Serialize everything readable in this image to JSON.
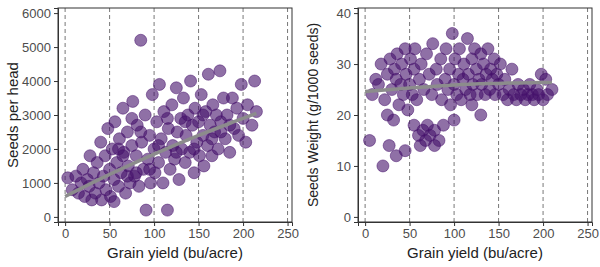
{
  "chart_data": [
    {
      "type": "scatter",
      "xlabel": "Grain yield (bu/acre)",
      "ylabel": "Seeds per head",
      "xlim": [
        -8,
        255
      ],
      "ylim": [
        -150,
        6150
      ],
      "xticks": [
        0,
        50,
        100,
        150,
        200,
        250
      ],
      "yticks": [
        0,
        1000,
        2000,
        3000,
        4000,
        5000,
        6000
      ],
      "grid": "x",
      "series": [
        {
          "type": "scatter",
          "marker": "circle",
          "color": "#45106b",
          "x": [
            3,
            8,
            12,
            15,
            18,
            20,
            22,
            25,
            27,
            28,
            30,
            32,
            34,
            36,
            38,
            40,
            41,
            43,
            45,
            46,
            48,
            50,
            51,
            53,
            55,
            56,
            58,
            60,
            61,
            63,
            65,
            66,
            68,
            70,
            71,
            73,
            75,
            76,
            78,
            80,
            81,
            83,
            85,
            86,
            88,
            90,
            91,
            93,
            95,
            96,
            98,
            100,
            101,
            103,
            105,
            106,
            108,
            110,
            111,
            113,
            115,
            116,
            118,
            120,
            121,
            123,
            125,
            126,
            128,
            130,
            131,
            133,
            135,
            136,
            138,
            140,
            141,
            143,
            145,
            146,
            148,
            150,
            151,
            153,
            155,
            156,
            158,
            160,
            161,
            163,
            165,
            166,
            168,
            170,
            172,
            174,
            175,
            178,
            180,
            182,
            185,
            188,
            190,
            193,
            195,
            198,
            200,
            203,
            205,
            210,
            213,
            215,
            55,
            60,
            65,
            70,
            75,
            80,
            85,
            95,
            105,
            115,
            125,
            135,
            145,
            155,
            165,
            175,
            185
          ],
          "values": [
            1150,
            800,
            1200,
            700,
            1000,
            1400,
            600,
            1100,
            900,
            1800,
            500,
            1300,
            700,
            1600,
            1000,
            2200,
            500,
            1200,
            1800,
            800,
            2600,
            1400,
            600,
            2000,
            1100,
            2800,
            1600,
            900,
            2300,
            1300,
            3200,
            1900,
            700,
            2500,
            1500,
            1000,
            2100,
            3400,
            1200,
            1800,
            2700,
            900,
            5200,
            2200,
            1400,
            3000,
            200,
            1700,
            2400,
            1000,
            3600,
            2000,
            1300,
            2800,
            1600,
            3900,
            2300,
            1000,
            3100,
            1900,
            200,
            2600,
            1400,
            3300,
            2100,
            1700,
            3800,
            2500,
            1100,
            2900,
            2000,
            3500,
            1600,
            2400,
            3000,
            1900,
            4000,
            2700,
            1300,
            3200,
            2200,
            2800,
            1800,
            3600,
            2400,
            1500,
            3100,
            2100,
            4200,
            2700,
            1800,
            3300,
            2500,
            3000,
            2000,
            4300,
            2800,
            3500,
            2300,
            3000,
            1900,
            3500,
            2600,
            3200,
            2400,
            3900,
            2900,
            2200,
            3300,
            2700,
            4000,
            3100,
            450,
            2000,
            1800,
            1200,
            2900,
            1300,
            2500,
            1400,
            2100,
            2900,
            1900,
            2800,
            2000,
            3000,
            2300,
            2500,
            2700
          ]
        },
        {
          "type": "line",
          "line_style": "solid",
          "color": "#8c8c8c",
          "x": [
            0,
            50,
            100,
            150,
            200,
            215
          ],
          "values": [
            600,
            1250,
            1850,
            2400,
            2900,
            3050
          ]
        }
      ]
    },
    {
      "type": "scatter",
      "xlabel": "Grain yield (bu/acre)",
      "ylabel": "Seeds Weight (g/1000 seeds)",
      "xlim": [
        -8,
        255
      ],
      "ylim": [
        -1,
        41
      ],
      "xticks": [
        0,
        50,
        100,
        150,
        200,
        250
      ],
      "yticks": [
        0,
        10,
        20,
        30,
        40
      ],
      "grid": "x",
      "series": [
        {
          "type": "scatter",
          "marker": "circle",
          "color": "#45106b",
          "x": [
            5,
            8,
            12,
            15,
            18,
            20,
            22,
            25,
            27,
            28,
            30,
            32,
            33,
            35,
            36,
            38,
            40,
            41,
            43,
            45,
            46,
            48,
            50,
            51,
            53,
            55,
            56,
            58,
            60,
            61,
            62,
            63,
            65,
            66,
            68,
            69,
            70,
            72,
            73,
            75,
            76,
            78,
            80,
            81,
            83,
            85,
            86,
            88,
            90,
            91,
            93,
            95,
            96,
            98,
            100,
            101,
            103,
            105,
            106,
            108,
            110,
            111,
            113,
            115,
            116,
            118,
            120,
            121,
            123,
            125,
            126,
            128,
            130,
            131,
            133,
            135,
            136,
            138,
            140,
            141,
            143,
            145,
            146,
            148,
            150,
            152,
            155,
            157,
            160,
            162,
            165,
            167,
            170,
            172,
            175,
            178,
            180,
            183,
            185,
            188,
            190,
            193,
            195,
            198,
            200,
            203,
            205,
            210,
            45,
            35,
            25,
            55,
            78,
            100,
            120,
            130
          ],
          "values": [
            15,
            24,
            27,
            26,
            30,
            10,
            23,
            28,
            14,
            31,
            25,
            19,
            29,
            27,
            32,
            22,
            26,
            30,
            24,
            33,
            28,
            21,
            26,
            31,
            24,
            29,
            33,
            23,
            16,
            27,
            14,
            30,
            17,
            25,
            15,
            32,
            18,
            28,
            16,
            24,
            34,
            17,
            29,
            26,
            15,
            31,
            23,
            18,
            27,
            33,
            25,
            29,
            22,
            36,
            26,
            31,
            24,
            28,
            33,
            23,
            27,
            30,
            25,
            35,
            28,
            24,
            31,
            26,
            33,
            29,
            24,
            27,
            32,
            26,
            30,
            24,
            28,
            33,
            25,
            29,
            27,
            31,
            24,
            28,
            26,
            30,
            24,
            27,
            23,
            25,
            29,
            24,
            23,
            26,
            24,
            25,
            23,
            24,
            26,
            24,
            23,
            25,
            24,
            28,
            23,
            27,
            24,
            25,
            13,
            12,
            20,
            18,
            14,
            19,
            22,
            20
          ]
        },
        {
          "type": "line",
          "line_style": "solid",
          "color": "#8c8c8c",
          "x": [
            0,
            50,
            100,
            150,
            200,
            210
          ],
          "values": [
            24.6,
            25.3,
            25.9,
            26.2,
            26.4,
            26.4
          ]
        }
      ]
    }
  ]
}
